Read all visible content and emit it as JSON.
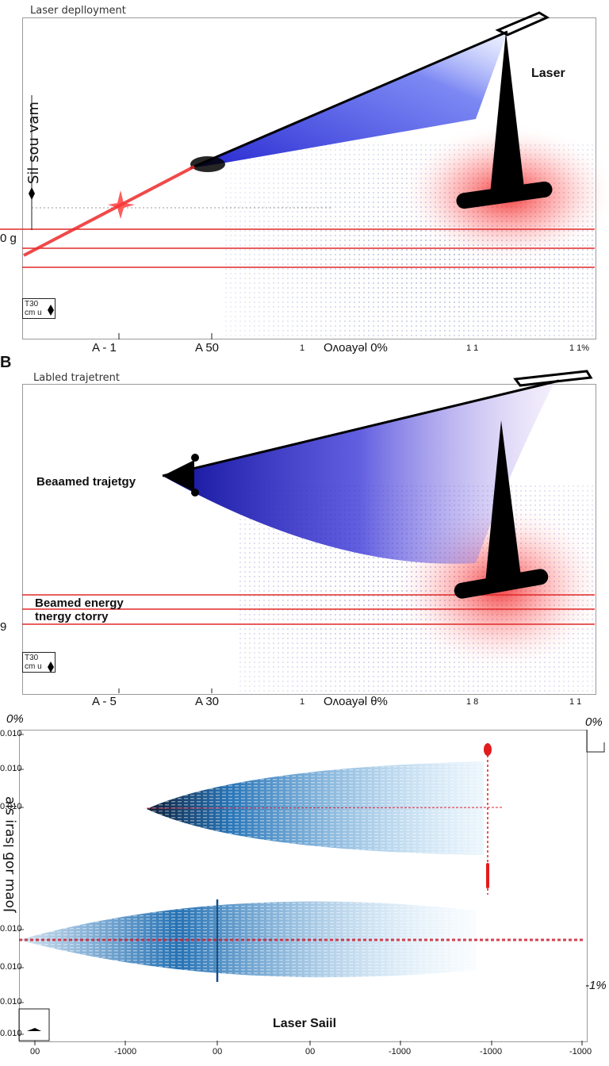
{
  "chart_data": [
    {
      "type": "line",
      "panel": "A",
      "title": "Laser deplloyment",
      "labels": {
        "laser": "Laser",
        "side_y": "0 g",
        "rot": "Sil sou vam",
        "scale_top": "T30",
        "scale_bottom": "cm u"
      },
      "xticks": [
        "A  -  1",
        "A  50",
        "1",
        "Oʌoayəl  0%",
        "1  1",
        "1  1%"
      ],
      "hlines": 3,
      "colors": {
        "beam": "#2233dd",
        "laser_glow": "#ee2222",
        "trajectory": "#ee3333",
        "mesh": "#334499"
      }
    },
    {
      "type": "line",
      "panel": "B",
      "title": "Labled trajetrent",
      "labels": {
        "trajectory": "Beaamed trajetgy",
        "energy_line1": "Beamed energy",
        "energy_line2": "tnergy ctorry",
        "side_y": "9",
        "scale_top": "T30",
        "scale_bottom": "cm u"
      },
      "xticks": [
        "A  -  5",
        "A 30",
        "1",
        "Oʌoayəl  θ%",
        "1  8",
        "1  1"
      ],
      "hlines": 3,
      "colors": {
        "beam": "#2222cc",
        "laser_glow": "#ee2222",
        "mesh": "#5533aa"
      }
    },
    {
      "type": "line",
      "panel": "C",
      "title": "Laser Saiil",
      "corner_left": "0%",
      "corner_right": "0%",
      "right_label": "-1%",
      "ylabel": "Joɐɯ ɹoƃ lsɐɹᴉ sᴉɐ",
      "yticks": [
        "0.010",
        "0.010",
        "0.010",
        "0.010",
        "0.010",
        "0.010",
        "0.010"
      ],
      "xticks": [
        "00",
        "-1000",
        "00",
        "00",
        "-1000",
        "-1000",
        "-1000"
      ],
      "colors": {
        "beam": "#1f6fb5",
        "marker": "#e21b1b"
      }
    }
  ]
}
